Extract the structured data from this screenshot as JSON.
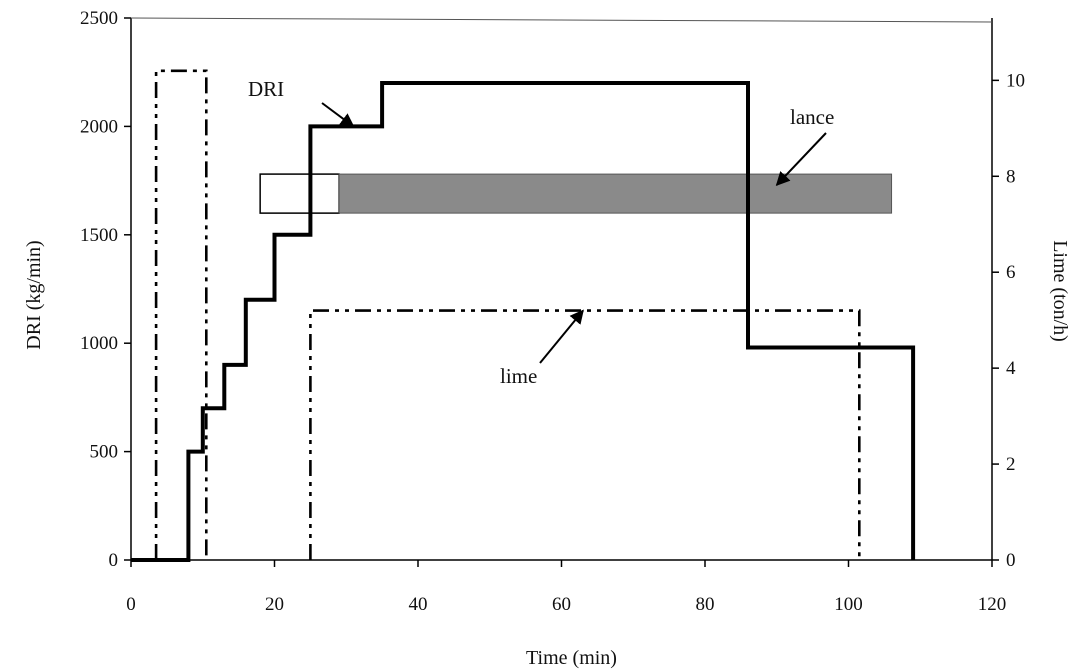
{
  "chart_data": {
    "type": "line",
    "title": "",
    "xlabel": "Time (min)",
    "ylabel_left": "DRI (kg/min)",
    "ylabel_right": "Lime (ton/h)",
    "xlim": [
      0,
      120
    ],
    "ylim_left": [
      0,
      2500
    ],
    "ylim_right": [
      0,
      11.3
    ],
    "grid": false,
    "x_ticks": [
      "0",
      "20",
      "40",
      "60",
      "80",
      "100",
      "120"
    ],
    "y_left_ticks": [
      "0",
      "500",
      "1000",
      "1500",
      "2000",
      "2500"
    ],
    "y_right_ticks": [
      "0",
      "2",
      "4",
      "6",
      "8",
      "10"
    ],
    "series": [
      {
        "name": "DRI",
        "axis": "left",
        "line_style": "solid",
        "x": [
          0,
          8,
          8,
          10,
          10,
          13,
          13,
          16,
          16,
          20,
          20,
          25,
          25,
          31,
          31,
          35,
          35,
          86,
          86,
          109,
          109
        ],
        "y": [
          0,
          0,
          500,
          500,
          700,
          700,
          900,
          900,
          1200,
          1200,
          1500,
          1500,
          2000,
          2000,
          2000,
          2000,
          2200,
          2200,
          980,
          980,
          0
        ]
      },
      {
        "name": "lime",
        "axis": "right",
        "line_style": "dash-dot",
        "segments": [
          {
            "x": [
              3.5,
              3.5,
              10.5,
              10.5
            ],
            "y": [
              0,
              10.2,
              10.2,
              0
            ]
          },
          {
            "x": [
              25,
              25,
              101.5,
              101.5
            ],
            "y": [
              0,
              5.2,
              5.2,
              0
            ]
          }
        ]
      }
    ],
    "bands": [
      {
        "name": "lance",
        "axis": "left",
        "y_range": [
          1600,
          1780
        ],
        "unfilled_x": [
          18,
          29
        ],
        "filled_x": [
          29,
          106
        ]
      }
    ],
    "annotations": [
      {
        "text": "DRI",
        "points_to": [
          31,
          2000
        ]
      },
      {
        "text": "lance",
        "points_to": [
          90,
          1730
        ]
      },
      {
        "text": "lime",
        "points_to": [
          63,
          5.2
        ]
      }
    ],
    "colors": {
      "line": "#000000",
      "band_fill": "#8a8a8a",
      "band_border": "#000000"
    }
  }
}
